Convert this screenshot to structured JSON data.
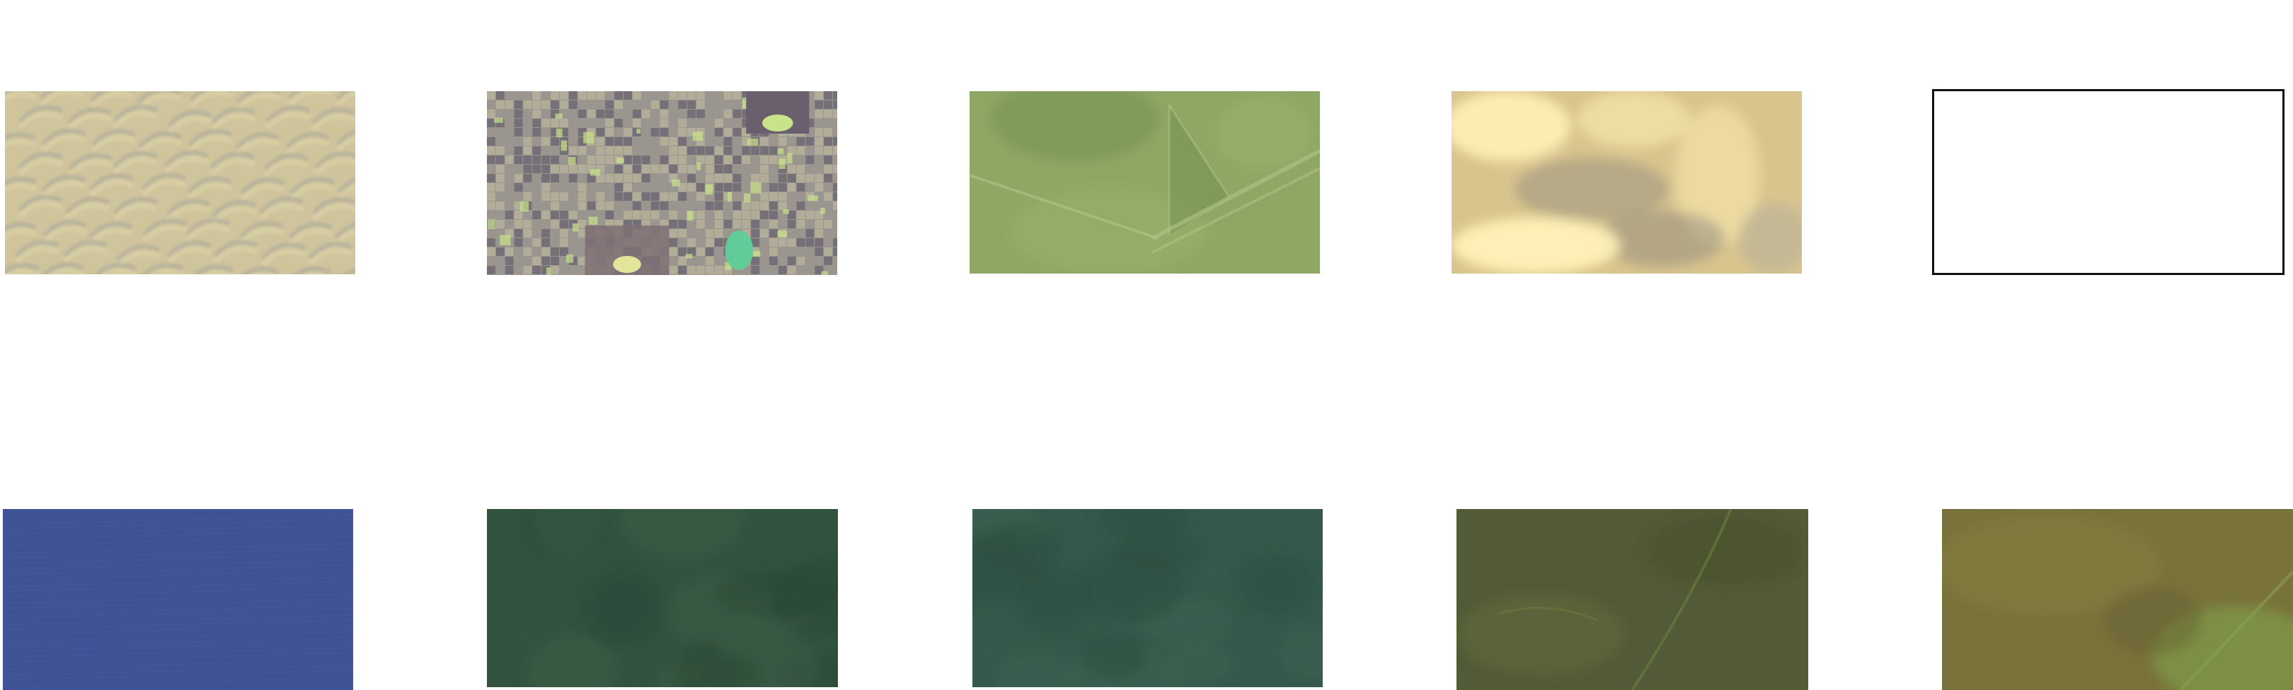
{
  "tiles": [
    {
      "name": "satellite-tile-desert-dunes",
      "kind": "dunes",
      "colors": {
        "base": "#cfc49c",
        "light": "#ddd3a6",
        "dark": "#a9a89d",
        "accent": "#e6d8a0"
      }
    },
    {
      "name": "satellite-tile-urban-grid",
      "kind": "urban",
      "colors": {
        "base": "#9a958f",
        "light": "#b6b19a",
        "dark": "#6f6a74",
        "accent": "#c9e38a",
        "water": "#5fcf9a"
      }
    },
    {
      "name": "satellite-tile-farmland-fields",
      "kind": "fields",
      "colors": {
        "base": "#8fa765",
        "light": "#9ab46f",
        "dark": "#6f8b4f",
        "accent": "#b1c48a"
      }
    },
    {
      "name": "satellite-tile-cloudy-terrain",
      "kind": "clouds",
      "colors": {
        "base": "#d9c48e",
        "light": "#f3e3a8",
        "dark": "#8f8a7d",
        "accent": "#fff1b8"
      }
    },
    {
      "name": "satellite-tile-empty-frame",
      "kind": "empty",
      "colors": {
        "base": "#ffffff",
        "border": "#111111"
      }
    },
    {
      "name": "satellite-tile-open-water",
      "kind": "water",
      "colors": {
        "base": "#3f5296",
        "light": "#4a5ea3",
        "dark": "#374a89"
      }
    },
    {
      "name": "satellite-tile-dark-forest",
      "kind": "forest",
      "colors": {
        "base": "#33533f",
        "light": "#3b5c45",
        "dark": "#2a4735"
      }
    },
    {
      "name": "satellite-tile-green-forest",
      "kind": "forest2",
      "colors": {
        "base": "#35594a",
        "light": "#3e6452",
        "dark": "#2d4d40"
      }
    },
    {
      "name": "satellite-tile-olive-wetland",
      "kind": "olive",
      "colors": {
        "base": "#525a37",
        "light": "#616b3e",
        "dark": "#454d2e",
        "accent": "#6e7f3e"
      }
    },
    {
      "name": "satellite-tile-olive-field",
      "kind": "olive2",
      "colors": {
        "base": "#79733b",
        "light": "#878041",
        "dark": "#646033",
        "accent": "#7f9b48"
      }
    }
  ]
}
